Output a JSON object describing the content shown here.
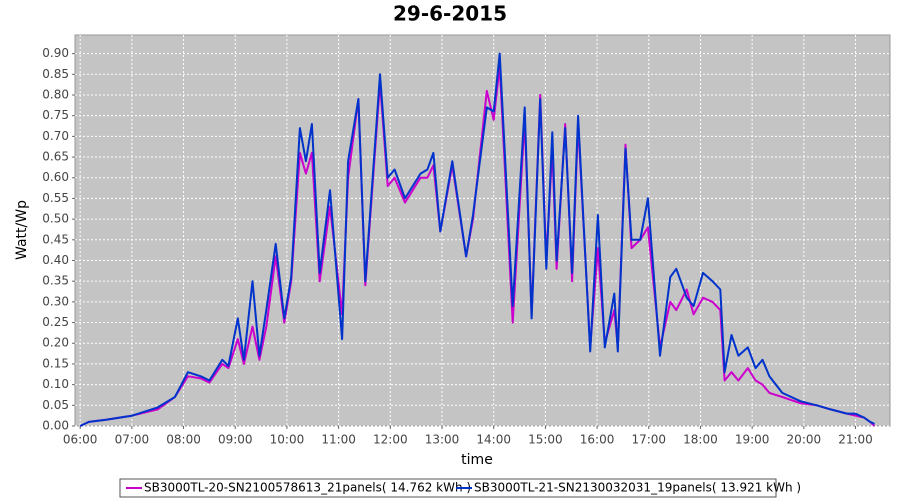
{
  "chart_data": {
    "type": "line",
    "title": "29-6-2015",
    "x_label": "time",
    "y_label": "Watt/Wp",
    "x": [
      "06:00",
      "06:10",
      "06:30",
      "07:00",
      "07:30",
      "07:50",
      "08:05",
      "08:20",
      "08:30",
      "08:45",
      "08:52",
      "09:03",
      "09:10",
      "09:20",
      "09:28",
      "09:36",
      "09:47",
      "09:57",
      "10:05",
      "10:15",
      "10:22",
      "10:29",
      "10:38",
      "10:50",
      "11:04",
      "11:11",
      "11:23",
      "11:31",
      "11:48",
      "11:57",
      "12:05",
      "12:17",
      "12:35",
      "12:43",
      "12:50",
      "12:58",
      "13:12",
      "13:28",
      "13:36",
      "13:52",
      "14:00",
      "14:07",
      "14:22",
      "14:36",
      "14:44",
      "14:54",
      "15:01",
      "15:08",
      "15:13",
      "15:23",
      "15:31",
      "15:38",
      "15:52",
      "16:01",
      "16:09",
      "16:20",
      "16:24",
      "16:33",
      "16:40",
      "16:50",
      "16:59",
      "17:13",
      "17:25",
      "17:32",
      "17:44",
      "17:52",
      "18:03",
      "18:14",
      "18:23",
      "18:28",
      "18:36",
      "18:44",
      "18:55",
      "19:04",
      "19:12",
      "19:20",
      "19:35",
      "19:56",
      "20:15",
      "20:31",
      "20:50",
      "21:00",
      "21:10",
      "21:17",
      "21:22"
    ],
    "series": [
      {
        "name": "SB3000TL-20-SN2100578613_21panels( 14.762 kWh )",
        "color": "#cc00cc",
        "values": [
          0,
          0.01,
          0.015,
          0.025,
          0.04,
          0.07,
          0.12,
          0.115,
          0.105,
          0.15,
          0.14,
          0.21,
          0.15,
          0.24,
          0.16,
          0.24,
          0.41,
          0.25,
          0.35,
          0.66,
          0.61,
          0.66,
          0.35,
          0.53,
          0.27,
          0.6,
          0.79,
          0.34,
          0.83,
          0.58,
          0.6,
          0.54,
          0.6,
          0.6,
          0.63,
          0.47,
          0.63,
          0.41,
          0.5,
          0.81,
          0.74,
          0.87,
          0.25,
          0.74,
          0.27,
          0.8,
          0.4,
          0.67,
          0.38,
          0.73,
          0.35,
          0.73,
          0.19,
          0.43,
          0.2,
          0.28,
          0.19,
          0.68,
          0.43,
          0.45,
          0.48,
          0.19,
          0.3,
          0.28,
          0.33,
          0.27,
          0.31,
          0.3,
          0.28,
          0.11,
          0.13,
          0.11,
          0.14,
          0.11,
          0.1,
          0.08,
          0.07,
          0.055,
          0.05,
          0.04,
          0.03,
          0.025,
          0.02,
          0.01,
          0
        ]
      },
      {
        "name": "SB3000TL-21-SN2130032031_19panels( 13.921 kWh )",
        "color": "#0033cc",
        "values": [
          0,
          0.01,
          0.015,
          0.025,
          0.045,
          0.07,
          0.13,
          0.12,
          0.11,
          0.16,
          0.145,
          0.26,
          0.16,
          0.35,
          0.17,
          0.28,
          0.44,
          0.26,
          0.36,
          0.72,
          0.64,
          0.73,
          0.37,
          0.57,
          0.21,
          0.64,
          0.79,
          0.35,
          0.85,
          0.6,
          0.62,
          0.55,
          0.61,
          0.62,
          0.66,
          0.47,
          0.64,
          0.41,
          0.51,
          0.77,
          0.76,
          0.9,
          0.29,
          0.77,
          0.26,
          0.79,
          0.38,
          0.71,
          0.4,
          0.72,
          0.37,
          0.75,
          0.18,
          0.51,
          0.19,
          0.32,
          0.18,
          0.67,
          0.45,
          0.45,
          0.55,
          0.17,
          0.36,
          0.38,
          0.31,
          0.29,
          0.37,
          0.35,
          0.33,
          0.13,
          0.22,
          0.17,
          0.19,
          0.14,
          0.16,
          0.12,
          0.08,
          0.06,
          0.05,
          0.04,
          0.03,
          0.03,
          0.02,
          0.01,
          0.005
        ]
      }
    ],
    "xlim": [
      "05:54",
      "21:40"
    ],
    "xticks": [
      "06:00",
      "07:00",
      "08:00",
      "09:00",
      "10:00",
      "11:00",
      "12:00",
      "13:00",
      "14:00",
      "15:00",
      "16:00",
      "17:00",
      "18:00",
      "19:00",
      "20:00",
      "21:00"
    ],
    "ylim": [
      0,
      0.945
    ],
    "yticks": [
      {
        "value": 0,
        "label": "0.00"
      },
      {
        "value": 0.05,
        "label": "0.05"
      },
      {
        "value": 0.1,
        "label": "0.10"
      },
      {
        "value": 0.15,
        "label": "0.15"
      },
      {
        "value": 0.2,
        "label": "0.20"
      },
      {
        "value": 0.25,
        "label": "0.25"
      },
      {
        "value": 0.3,
        "label": "0.30"
      },
      {
        "value": 0.35,
        "label": "0.35"
      },
      {
        "value": 0.4,
        "label": "0.40"
      },
      {
        "value": 0.45,
        "label": "0.45"
      },
      {
        "value": 0.5,
        "label": "0.50"
      },
      {
        "value": 0.55,
        "label": "0.55"
      },
      {
        "value": 0.6,
        "label": "0.60"
      },
      {
        "value": 0.65,
        "label": "0.65"
      },
      {
        "value": 0.7,
        "label": "0.70"
      },
      {
        "value": 0.75,
        "label": "0.75"
      },
      {
        "value": 0.8,
        "label": "0.80"
      },
      {
        "value": 0.85,
        "label": "0.85"
      },
      {
        "value": 0.9,
        "label": "0.90"
      }
    ],
    "grid": true
  }
}
